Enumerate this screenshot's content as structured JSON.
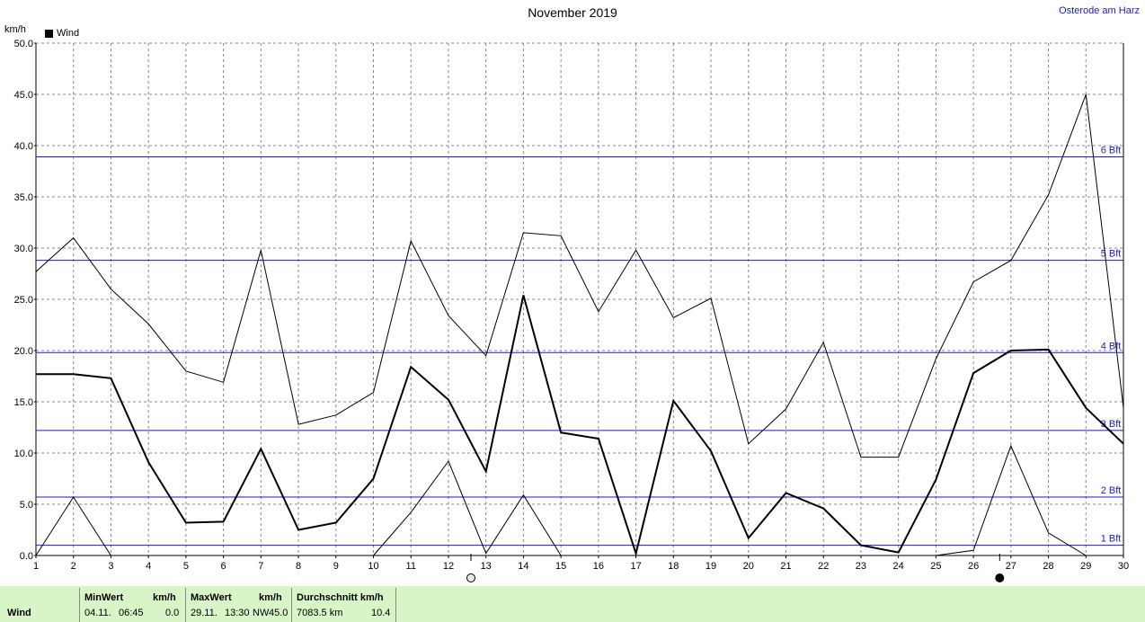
{
  "header": {
    "title": "November 2019",
    "station": "Osterode am Harz",
    "unit": "km/h",
    "legend_label": "Wind"
  },
  "chart_data": {
    "type": "line",
    "title": "November 2019",
    "ylabel": "km/h",
    "xlim": [
      1,
      30
    ],
    "ylim": [
      0,
      50
    ],
    "x_ticks": [
      1,
      2,
      3,
      4,
      5,
      6,
      7,
      8,
      9,
      10,
      11,
      12,
      13,
      14,
      15,
      16,
      17,
      18,
      19,
      20,
      21,
      22,
      23,
      24,
      25,
      26,
      27,
      28,
      29,
      30
    ],
    "y_ticks": [
      "0.0",
      "5.0",
      "10.0",
      "15.0",
      "20.0",
      "25.0",
      "30.0",
      "35.0",
      "40.0",
      "45.0",
      "50.0"
    ],
    "grid": true,
    "legend": "top-left",
    "series": [
      {
        "name": "Wind",
        "role": "average",
        "color": "#000000",
        "x": [
          1,
          2,
          3,
          4,
          5,
          6,
          7,
          8,
          9,
          10,
          11,
          12,
          13,
          14,
          15,
          16,
          17,
          18,
          19,
          20,
          21,
          22,
          23,
          24,
          25,
          26,
          27,
          28,
          29,
          30
        ],
        "values": [
          17.7,
          17.7,
          17.3,
          9.1,
          3.2,
          3.3,
          10.4,
          2.5,
          3.2,
          7.5,
          18.4,
          15.2,
          8.2,
          25.4,
          12.0,
          11.4,
          0.2,
          15.1,
          10.2,
          1.7,
          6.1,
          4.6,
          1.0,
          0.3,
          7.4,
          17.8,
          20.0,
          20.1,
          14.4,
          10.9
        ]
      },
      {
        "role": "maximum",
        "color": "#000000",
        "x": [
          1,
          2,
          3,
          4,
          5,
          6,
          7,
          8,
          9,
          10,
          11,
          12,
          13,
          14,
          15,
          16,
          17,
          18,
          19,
          20,
          21,
          22,
          23,
          24,
          25,
          26,
          27,
          28,
          29,
          30
        ],
        "values": [
          27.7,
          31.0,
          26.0,
          22.6,
          18.0,
          16.9,
          29.8,
          12.8,
          13.7,
          15.9,
          30.7,
          23.4,
          19.5,
          31.5,
          31.2,
          23.8,
          29.8,
          23.2,
          25.1,
          10.9,
          14.3,
          20.8,
          9.6,
          9.6,
          19.2,
          26.7,
          28.8,
          35.2,
          45.0,
          14.4
        ]
      },
      {
        "role": "minimum",
        "color": "#000000",
        "x": [
          1,
          2,
          3,
          4,
          5,
          6,
          7,
          8,
          9,
          10,
          11,
          12,
          13,
          14,
          15,
          16,
          17,
          18,
          19,
          20,
          21,
          22,
          23,
          24,
          25,
          26,
          27,
          28,
          29,
          30
        ],
        "values": [
          0.0,
          5.7,
          0.0,
          0.0,
          null,
          null,
          null,
          null,
          null,
          0.0,
          4.2,
          9.2,
          0.2,
          5.9,
          0.0,
          null,
          null,
          null,
          null,
          null,
          null,
          null,
          null,
          null,
          0.0,
          0.5,
          10.7,
          2.2,
          0.0,
          null
        ]
      }
    ],
    "beaufort_lines": [
      {
        "label": "1 Bft",
        "value": 1.0
      },
      {
        "label": "2 Bft",
        "value": 5.7
      },
      {
        "label": "3 Bft",
        "value": 12.2
      },
      {
        "label": "4 Bft",
        "value": 19.8
      },
      {
        "label": "5 Bft",
        "value": 28.8
      },
      {
        "label": "6 Bft",
        "value": 38.9
      }
    ],
    "moon_phases": [
      {
        "day": 12.6,
        "phase": "full"
      },
      {
        "day": 26.7,
        "phase": "new"
      }
    ]
  },
  "footer": {
    "row_label": "Wind",
    "min_header": "MinWert",
    "min_unit": "km/h",
    "min_date": "04.11.",
    "min_time": "06:45",
    "min_value": "0.0",
    "max_header": "MaxWert",
    "max_unit": "km/h",
    "max_date": "29.11.",
    "max_time": "13:30",
    "max_dir": "NW",
    "max_value": "45.0",
    "avg_header": "Durchschnitt km/h",
    "avg_distance": "7083.5 km",
    "avg_value": "10.4"
  },
  "colors": {
    "beaufort": "#1a1ac8",
    "grid": "#888888",
    "footer_bg": "#d8f5c8"
  }
}
